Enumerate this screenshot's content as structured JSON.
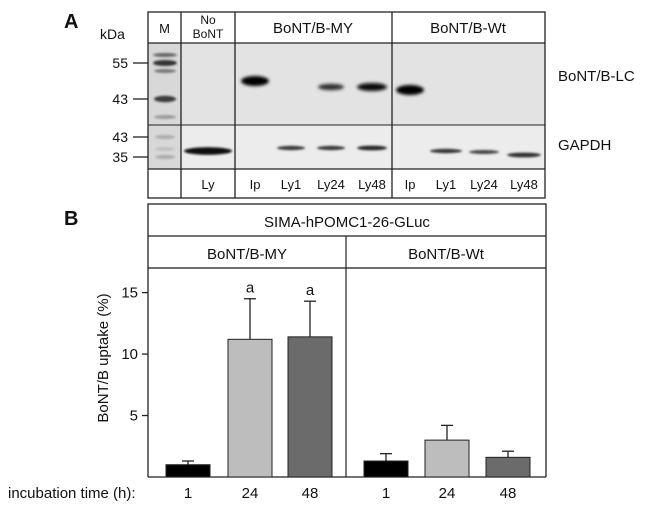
{
  "panels": {
    "a_label": "A",
    "b_label": "B"
  },
  "blot": {
    "kda_label": "kDa",
    "marker_col": "M",
    "no_bont_line1": "No",
    "no_bont_line2": "BoNT",
    "group_my": "BoNT/B-MY",
    "group_wt": "BoNT/B-Wt",
    "mw_top": [
      "55",
      "43"
    ],
    "mw_bottom": [
      "43",
      "35"
    ],
    "row_labels": [
      "BoNT/B-LC",
      "GAPDH"
    ],
    "lane_labels": [
      "Ly",
      "Ip",
      "Ly1",
      "Ly24",
      "Ly48",
      "Ip",
      "Ly1",
      "Ly24",
      "Ly48"
    ]
  },
  "chart_data": {
    "type": "bar",
    "title": "SIMA-hPOMC1-26-GLuc",
    "groups": [
      "BoNT/B-MY",
      "BoNT/B-Wt"
    ],
    "ylabel": "BoNT/B uptake (%)",
    "xlabel": "incubation time (h):",
    "ylim": [
      0,
      17
    ],
    "yticks": [
      5,
      10,
      15
    ],
    "categories": [
      "1",
      "24",
      "48",
      "1",
      "24",
      "48"
    ],
    "values": [
      1.0,
      11.2,
      11.4,
      1.3,
      3.0,
      1.6
    ],
    "errors": [
      0.3,
      3.3,
      2.9,
      0.6,
      1.2,
      0.5
    ],
    "significance": [
      "",
      "a",
      "a",
      "",
      "",
      ""
    ],
    "bar_colors": [
      "#000000",
      "#bdbdbd",
      "#6b6b6b",
      "#000000",
      "#bdbdbd",
      "#6b6b6b"
    ]
  }
}
